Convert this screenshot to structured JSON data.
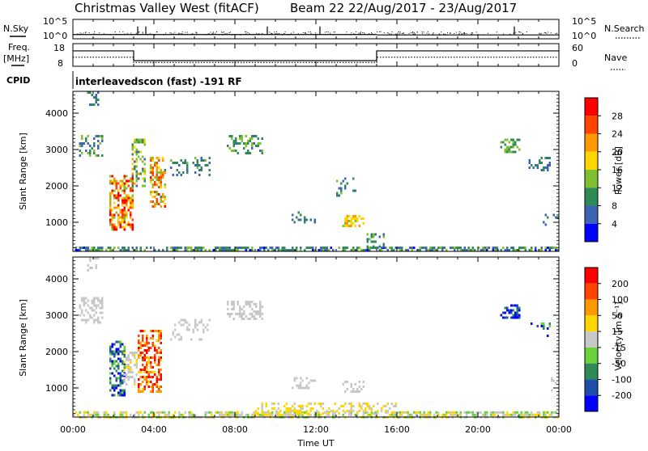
{
  "header": {
    "station": "Christmas Valley West (fitACF)",
    "beam_info": "Beam 22 22/Aug/2017 - 23/Aug/2017"
  },
  "top_panels": {
    "nsky_label": "N.Sky",
    "nsky_ticks": [
      "10^5",
      "10^0"
    ],
    "nsearch_label": "N.Search",
    "nsearch_ticks": [
      "10^5",
      "10^0"
    ],
    "freq_label": "Freq.",
    "freq_unit": "[MHz]",
    "freq_ticks": [
      "18",
      "8"
    ],
    "nave_label": "Nave",
    "nave_ticks": [
      "60",
      "0"
    ],
    "cpid_label": "CPID",
    "cpid_text": "interleavedscon (fast) -191 RF"
  },
  "power_panel": {
    "ylabel": "Slant Range [km]",
    "yticks": [
      "4000",
      "3000",
      "2000",
      "1000"
    ],
    "colorbar_label": "Power [dB]",
    "colorbar_ticks": [
      "28",
      "24",
      "20",
      "16",
      "12",
      "8",
      "4"
    ],
    "colors": [
      "#0000ff",
      "#3c64b4",
      "#2e8b57",
      "#7fc031",
      "#ffd700",
      "#ff9900",
      "#ff4500",
      "#ff0000"
    ]
  },
  "velocity_panel": {
    "ylabel": "Slant Range [km]",
    "yticks": [
      "4000",
      "3000",
      "2000",
      "1000"
    ],
    "colorbar_label": "Velocity [m s⁻¹]",
    "colorbar_ticks": [
      "200",
      "100",
      "50",
      "15",
      "-15",
      "-50",
      "-100",
      "-200"
    ],
    "colors": [
      "#0000ff",
      "#1f4fa8",
      "#2e8b57",
      "#6ad23a",
      "#c8c8c8",
      "#ffd700",
      "#ff9900",
      "#ff4500",
      "#ff0000"
    ]
  },
  "x_axis": {
    "label": "Time UT",
    "ticks": [
      "00:00",
      "04:00",
      "08:00",
      "12:00",
      "16:00",
      "20:00",
      "00:00"
    ]
  },
  "chart_data": [
    {
      "type": "line",
      "name": "nsky",
      "x_unit": "hours UT",
      "ylim_log10": [
        0,
        5
      ],
      "segments": [
        {
          "x": [
            0,
            15
          ],
          "y_log10": [
            1.1,
            1.1
          ]
        },
        {
          "x": [
            15,
            24
          ],
          "y_log10": [
            1.0,
            1.0
          ]
        }
      ]
    },
    {
      "type": "line",
      "name": "freq_nave",
      "x_unit": "hours UT",
      "freq_ylim": [
        8,
        18
      ],
      "nave_ylim": [
        0,
        60
      ],
      "freq_steps": [
        [
          0,
          3,
          14.8
        ],
        [
          3,
          15,
          10.5
        ],
        [
          15,
          24,
          14.8
        ]
      ],
      "nave_steps": [
        [
          0,
          3,
          24
        ],
        [
          3,
          15,
          10
        ],
        [
          15,
          24,
          24
        ]
      ]
    },
    {
      "type": "heatmap",
      "name": "power",
      "x_unit": "hours UT",
      "y_unit": "km",
      "ylim": [
        200,
        4600
      ],
      "xlim": [
        0,
        24
      ],
      "value_range": [
        0,
        30
      ],
      "regions": [
        {
          "x": [
            0.0,
            24.0
          ],
          "y": [
            200,
            330
          ],
          "v": [
            3,
            14
          ],
          "density": 0.6
        },
        {
          "x": [
            1.8,
            3.0
          ],
          "y": [
            800,
            2300
          ],
          "v": [
            12,
            30
          ],
          "density": 0.6
        },
        {
          "x": [
            2.9,
            3.6
          ],
          "y": [
            2000,
            3300
          ],
          "v": [
            6,
            20
          ],
          "density": 0.5
        },
        {
          "x": [
            3.8,
            4.6
          ],
          "y": [
            1400,
            2800
          ],
          "v": [
            10,
            28
          ],
          "density": 0.5
        },
        {
          "x": [
            0.3,
            1.5
          ],
          "y": [
            2800,
            3400
          ],
          "v": [
            4,
            14
          ],
          "density": 0.35
        },
        {
          "x": [
            0.7,
            1.3
          ],
          "y": [
            4200,
            4600
          ],
          "v": [
            4,
            10
          ],
          "density": 0.4
        },
        {
          "x": [
            4.8,
            6.8
          ],
          "y": [
            2300,
            2800
          ],
          "v": [
            4,
            12
          ],
          "density": 0.3
        },
        {
          "x": [
            7.6,
            9.4
          ],
          "y": [
            2900,
            3400
          ],
          "v": [
            6,
            14
          ],
          "density": 0.4
        },
        {
          "x": [
            10.8,
            12.0
          ],
          "y": [
            1000,
            1300
          ],
          "v": [
            4,
            10
          ],
          "density": 0.3
        },
        {
          "x": [
            13.3,
            14.4
          ],
          "y": [
            900,
            1200
          ],
          "v": [
            14,
            22
          ],
          "density": 0.5
        },
        {
          "x": [
            13.0,
            14.0
          ],
          "y": [
            1700,
            2300
          ],
          "v": [
            4,
            12
          ],
          "density": 0.2
        },
        {
          "x": [
            21.1,
            22.1
          ],
          "y": [
            2900,
            3300
          ],
          "v": [
            8,
            14
          ],
          "density": 0.4
        },
        {
          "x": [
            22.5,
            23.6
          ],
          "y": [
            2400,
            2800
          ],
          "v": [
            4,
            10
          ],
          "density": 0.25
        },
        {
          "x": [
            23.2,
            24.0
          ],
          "y": [
            900,
            1300
          ],
          "v": [
            4,
            8
          ],
          "density": 0.2
        },
        {
          "x": [
            14.5,
            15.3
          ],
          "y": [
            330,
            700
          ],
          "v": [
            6,
            14
          ],
          "density": 0.35
        }
      ]
    },
    {
      "type": "heatmap",
      "name": "velocity",
      "x_unit": "hours UT",
      "y_unit": "km",
      "ylim": [
        200,
        4600
      ],
      "xlim": [
        0,
        24
      ],
      "value_range": [
        -250,
        250
      ],
      "regions": [
        {
          "x": [
            0.0,
            24.0
          ],
          "y": [
            200,
            360
          ],
          "v": [
            -60,
            60
          ],
          "density": 0.6
        },
        {
          "x": [
            1.8,
            2.6
          ],
          "y": [
            800,
            2300
          ],
          "v": [
            -250,
            -50
          ],
          "density": 0.55
        },
        {
          "x": [
            2.5,
            3.2
          ],
          "y": [
            1100,
            2000
          ],
          "v": [
            -20,
            40
          ],
          "density": 0.5
        },
        {
          "x": [
            3.2,
            4.4
          ],
          "y": [
            900,
            2600
          ],
          "v": [
            50,
            250
          ],
          "density": 0.5
        },
        {
          "x": [
            0.3,
            1.5
          ],
          "y": [
            2800,
            3500
          ],
          "v": [
            -15,
            15
          ],
          "density": 0.4
        },
        {
          "x": [
            0.7,
            1.3
          ],
          "y": [
            4200,
            4600
          ],
          "v": [
            -15,
            15
          ],
          "density": 0.45
        },
        {
          "x": [
            4.8,
            6.8
          ],
          "y": [
            2300,
            2900
          ],
          "v": [
            -15,
            15
          ],
          "density": 0.3
        },
        {
          "x": [
            7.6,
            9.4
          ],
          "y": [
            2900,
            3400
          ],
          "v": [
            -15,
            15
          ],
          "density": 0.4
        },
        {
          "x": [
            10.8,
            12.0
          ],
          "y": [
            1000,
            1300
          ],
          "v": [
            -15,
            15
          ],
          "density": 0.3
        },
        {
          "x": [
            13.3,
            14.4
          ],
          "y": [
            900,
            1200
          ],
          "v": [
            -15,
            15
          ],
          "density": 0.45
        },
        {
          "x": [
            21.1,
            22.1
          ],
          "y": [
            2900,
            3300
          ],
          "v": [
            -250,
            -100
          ],
          "density": 0.45
        },
        {
          "x": [
            22.5,
            23.6
          ],
          "y": [
            2400,
            2800
          ],
          "v": [
            -250,
            -50
          ],
          "density": 0.25
        },
        {
          "x": [
            23.2,
            24.0
          ],
          "y": [
            900,
            1300
          ],
          "v": [
            -15,
            15
          ],
          "density": 0.2
        },
        {
          "x": [
            9.0,
            16.0
          ],
          "y": [
            330,
            600
          ],
          "v": [
            15,
            60
          ],
          "density": 0.3
        }
      ]
    }
  ]
}
